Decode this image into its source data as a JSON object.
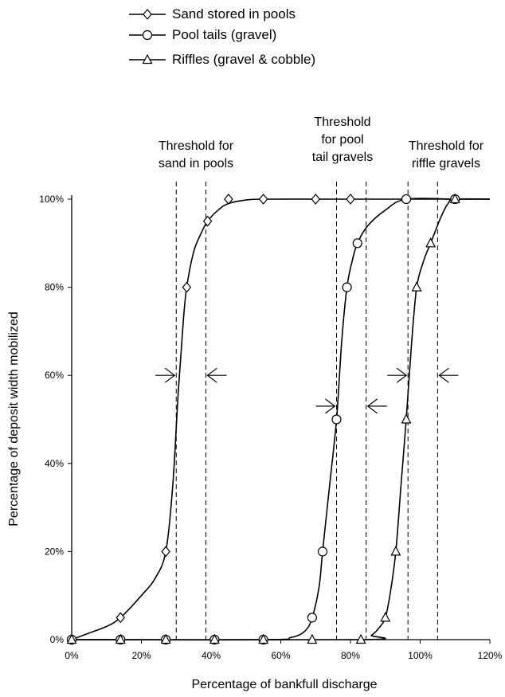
{
  "chart_data": {
    "type": "line",
    "title": "",
    "xlabel": "Percentage of bankfull discharge",
    "ylabel": "Percentage of deposit width mobilized",
    "xlim": [
      0,
      120
    ],
    "ylim": [
      0,
      100
    ],
    "x_ticks": [
      "0%",
      "20%",
      "40%",
      "60%",
      "80%",
      "100%",
      "120%"
    ],
    "y_ticks": [
      "0%",
      "20%",
      "40%",
      "60%",
      "80%",
      "100%"
    ],
    "grid": false,
    "legend_position": "top-left",
    "series": [
      {
        "name": "Sand stored in pools",
        "marker": "diamond",
        "points": [
          [
            0,
            0
          ],
          [
            14,
            5
          ],
          [
            27,
            20
          ],
          [
            33,
            80
          ],
          [
            39,
            95
          ],
          [
            45,
            100
          ],
          [
            55,
            100
          ],
          [
            70,
            100
          ],
          [
            80,
            100
          ]
        ],
        "curve": [
          [
            0,
            0
          ],
          [
            5,
            1.5
          ],
          [
            10,
            3
          ],
          [
            14,
            5
          ],
          [
            20,
            10
          ],
          [
            24,
            14
          ],
          [
            27,
            20
          ],
          [
            29,
            35
          ],
          [
            30.5,
            55
          ],
          [
            32,
            72
          ],
          [
            33,
            80
          ],
          [
            35,
            88
          ],
          [
            37,
            92
          ],
          [
            39,
            95
          ],
          [
            42,
            97.5
          ],
          [
            45,
            99
          ],
          [
            50,
            99.8
          ],
          [
            55,
            100
          ],
          [
            70,
            100
          ],
          [
            80,
            100
          ],
          [
            95,
            100
          ],
          [
            120,
            100
          ]
        ]
      },
      {
        "name": "Pool tails (gravel)",
        "marker": "circle",
        "points": [
          [
            0,
            0
          ],
          [
            14,
            0
          ],
          [
            27,
            0
          ],
          [
            41,
            0
          ],
          [
            55,
            0
          ],
          [
            69,
            5
          ],
          [
            72,
            20
          ],
          [
            76,
            50
          ],
          [
            79,
            80
          ],
          [
            82,
            90
          ],
          [
            96,
            100
          ],
          [
            110,
            100
          ]
        ],
        "curve": [
          [
            0,
            0
          ],
          [
            55,
            0
          ],
          [
            63,
            0.5
          ],
          [
            67,
            2
          ],
          [
            69,
            5
          ],
          [
            71,
            12
          ],
          [
            72,
            20
          ],
          [
            74,
            35
          ],
          [
            76,
            50
          ],
          [
            77.5,
            68
          ],
          [
            79,
            80
          ],
          [
            80.5,
            86
          ],
          [
            82,
            90
          ],
          [
            85,
            94
          ],
          [
            90,
            97.5
          ],
          [
            96,
            100
          ],
          [
            110,
            100
          ],
          [
            120,
            100
          ]
        ]
      },
      {
        "name": "Riffles (gravel & cobble)",
        "marker": "triangle",
        "points": [
          [
            0,
            0
          ],
          [
            14,
            0
          ],
          [
            27,
            0
          ],
          [
            41,
            0
          ],
          [
            55,
            0
          ],
          [
            69,
            0
          ],
          [
            83,
            0
          ],
          [
            90,
            5
          ],
          [
            93,
            20
          ],
          [
            96,
            50
          ],
          [
            99,
            80
          ],
          [
            103,
            90
          ],
          [
            110,
            100
          ]
        ],
        "curve": [
          [
            0,
            0
          ],
          [
            83,
            0
          ],
          [
            86,
            1
          ],
          [
            88,
            2.5
          ],
          [
            90,
            5
          ],
          [
            91.5,
            11
          ],
          [
            93,
            20
          ],
          [
            94.5,
            35
          ],
          [
            96,
            50
          ],
          [
            97.5,
            67
          ],
          [
            99,
            80
          ],
          [
            101,
            86
          ],
          [
            103,
            90
          ],
          [
            106,
            96
          ],
          [
            108,
            99
          ],
          [
            110,
            100
          ],
          [
            120,
            100
          ]
        ]
      }
    ],
    "annotations": [
      {
        "lines": [
          "Threshold for",
          "sand in pools"
        ],
        "threshold_x": [
          30,
          38.5
        ],
        "arrow_y": 60
      },
      {
        "lines": [
          "Threshold",
          "for pool",
          "tail gravels"
        ],
        "threshold_x": [
          76,
          84.5
        ],
        "arrow_y": 53
      },
      {
        "lines": [
          "Threshold for",
          "riffle gravels"
        ],
        "threshold_x": [
          96.5,
          105
        ],
        "arrow_y": 60
      }
    ]
  }
}
